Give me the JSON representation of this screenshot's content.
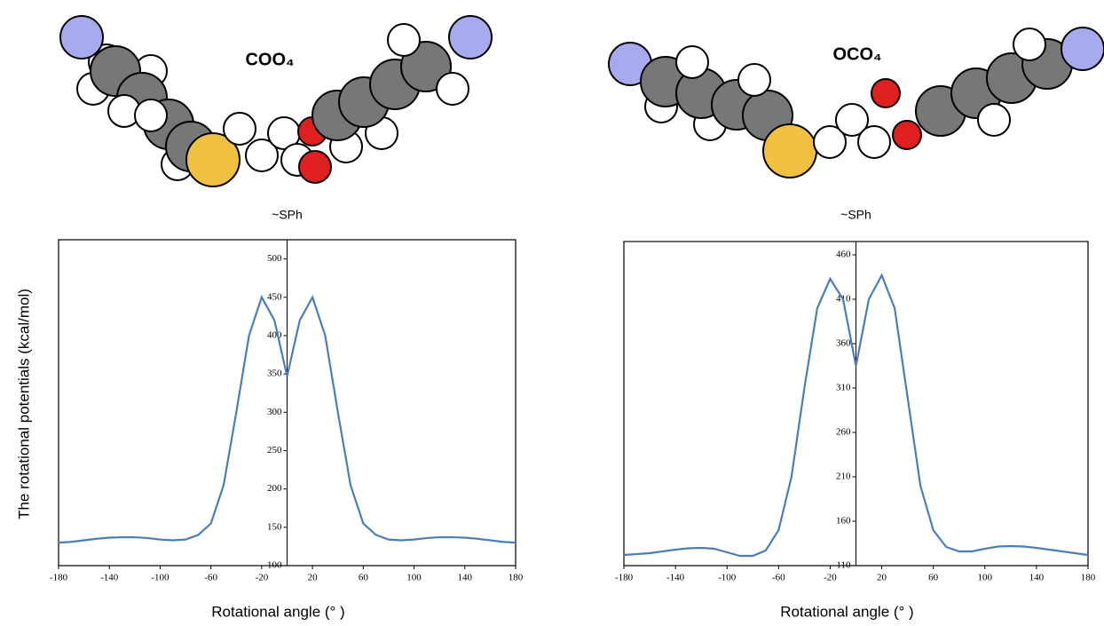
{
  "chart_data": [
    {
      "type": "line",
      "label": "COO₄",
      "title": "~SPh",
      "y_label": "The rotational potentials (kcal/mol)",
      "x_label": "Rotational angle (° )",
      "x": [
        -180,
        -170,
        -160,
        -150,
        -140,
        -130,
        -120,
        -110,
        -100,
        -90,
        -80,
        -70,
        -60,
        -50,
        -40,
        -30,
        -20,
        -10,
        0,
        10,
        20,
        30,
        40,
        50,
        60,
        70,
        80,
        90,
        100,
        110,
        120,
        130,
        140,
        150,
        160,
        170,
        180
      ],
      "series": [
        {
          "name": "COO₄",
          "color": "#4a7ebb",
          "values": [
            130,
            131,
            133,
            135,
            136.5,
            137,
            137,
            136,
            134,
            133,
            134,
            140,
            155,
            205,
            300,
            400,
            450,
            420,
            347,
            420,
            450,
            400,
            300,
            205,
            155,
            140,
            134,
            133,
            134,
            136,
            137,
            137,
            136.5,
            135,
            133,
            131,
            130
          ]
        }
      ],
      "xlim": [
        -180,
        180
      ],
      "xticks": [
        -180,
        -140,
        -100,
        -60,
        -20,
        20,
        60,
        100,
        140,
        180
      ],
      "ylim": [
        100,
        525
      ],
      "yticks": [
        100,
        150,
        200,
        250,
        300,
        350,
        400,
        450,
        500
      ]
    },
    {
      "type": "line",
      "label": "OCO₄",
      "title": "~SPh",
      "x_label": "Rotational angle (° )",
      "x": [
        -180,
        -170,
        -160,
        -150,
        -140,
        -130,
        -120,
        -110,
        -100,
        -90,
        -80,
        -70,
        -60,
        -50,
        -40,
        -30,
        -20,
        -10,
        0,
        10,
        20,
        30,
        40,
        50,
        60,
        70,
        80,
        90,
        100,
        110,
        120,
        130,
        140,
        150,
        160,
        170,
        180
      ],
      "series": [
        {
          "name": "OCO₄",
          "color": "#4a7ebb",
          "values": [
            122,
            123,
            124,
            126,
            128,
            129.5,
            130,
            129,
            125,
            121,
            121,
            127,
            150,
            210,
            310,
            400,
            433,
            410,
            335,
            410,
            437,
            400,
            300,
            200,
            150,
            131,
            126,
            126,
            129,
            131.5,
            132,
            131.5,
            130,
            128,
            126,
            124,
            122
          ]
        }
      ],
      "xlim": [
        -180,
        180
      ],
      "xticks": [
        -180,
        -140,
        -100,
        -60,
        -20,
        20,
        60,
        100,
        140,
        180
      ],
      "ylim": [
        110,
        475
      ],
      "yticks": [
        110,
        160,
        210,
        260,
        310,
        360,
        410,
        460
      ]
    }
  ]
}
